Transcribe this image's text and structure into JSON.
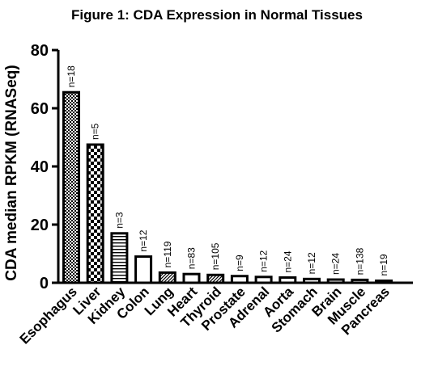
{
  "chart_data": {
    "type": "bar",
    "title": "Figure 1: CDA Expression in Normal Tissues",
    "xlabel": "",
    "ylabel": "CDA median RPKM (RNASeq)",
    "ylim": [
      0,
      80
    ],
    "yticks": [
      0,
      20,
      40,
      60,
      80
    ],
    "grid": false,
    "legend": "none",
    "categories": [
      "Esophagus",
      "Liver",
      "Kidney",
      "Colon",
      "Lung",
      "Heart",
      "Thyroid",
      "Prostate",
      "Adrenal",
      "Aorta",
      "Stomach",
      "Brain",
      "Muscle",
      "Pancreas"
    ],
    "values": [
      65.5,
      47.5,
      17,
      9,
      3.5,
      3,
      2.7,
      2.3,
      2,
      1.8,
      1.3,
      1.1,
      1,
      0.7
    ],
    "annotations": [
      "n=18",
      "n=5",
      "n=3",
      "n=12",
      "n=119",
      "n=83",
      "n=105",
      "n=9",
      "n=12",
      "n=24",
      "n=12",
      "n=24",
      "n=138",
      "n=19"
    ],
    "patterns": [
      "checker-fine",
      "checker",
      "hlines",
      "empty",
      "diag",
      "empty",
      "diag",
      "empty",
      "empty",
      "empty",
      "empty",
      "empty",
      "empty",
      "empty"
    ],
    "colors": {
      "bar_stroke": "#000000",
      "bar_fill": "#ffffff",
      "text": "#000000"
    }
  }
}
